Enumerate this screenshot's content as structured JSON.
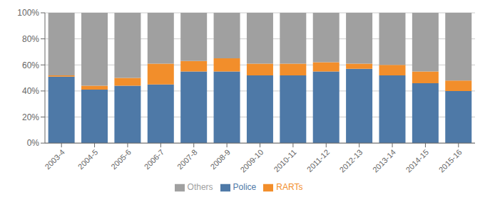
{
  "chart_data": {
    "type": "bar",
    "stacked": true,
    "categories": [
      "2003-4",
      "2004-5",
      "2005-6",
      "2006-7",
      "2007-8",
      "2008-9",
      "2009-10",
      "2010-11",
      "2011-12",
      "2012-13",
      "2013-14",
      "2014-15",
      "2015-16"
    ],
    "series": [
      {
        "name": "Police",
        "color": "#4e79a7",
        "values": [
          51,
          41,
          44,
          45,
          55,
          55,
          52,
          52,
          55,
          57,
          52,
          46,
          40
        ]
      },
      {
        "name": "RARTs",
        "color": "#f28e2b",
        "values": [
          1,
          3,
          6,
          16,
          8,
          10,
          9,
          9,
          7,
          4,
          8,
          9,
          8
        ]
      },
      {
        "name": "Others",
        "color": "#a0a0a0",
        "values": [
          48,
          56,
          50,
          39,
          37,
          35,
          39,
          39,
          38,
          39,
          40,
          45,
          52
        ]
      }
    ],
    "ylim": [
      0,
      100
    ],
    "yticks": [
      {
        "value": 0,
        "label": "0%"
      },
      {
        "value": 20,
        "label": "20%"
      },
      {
        "value": 40,
        "label": "40%"
      },
      {
        "value": 60,
        "label": "60%"
      },
      {
        "value": 80,
        "label": "80%"
      },
      {
        "value": 100,
        "label": "100%"
      }
    ],
    "grid": true,
    "legend": "bottom"
  }
}
